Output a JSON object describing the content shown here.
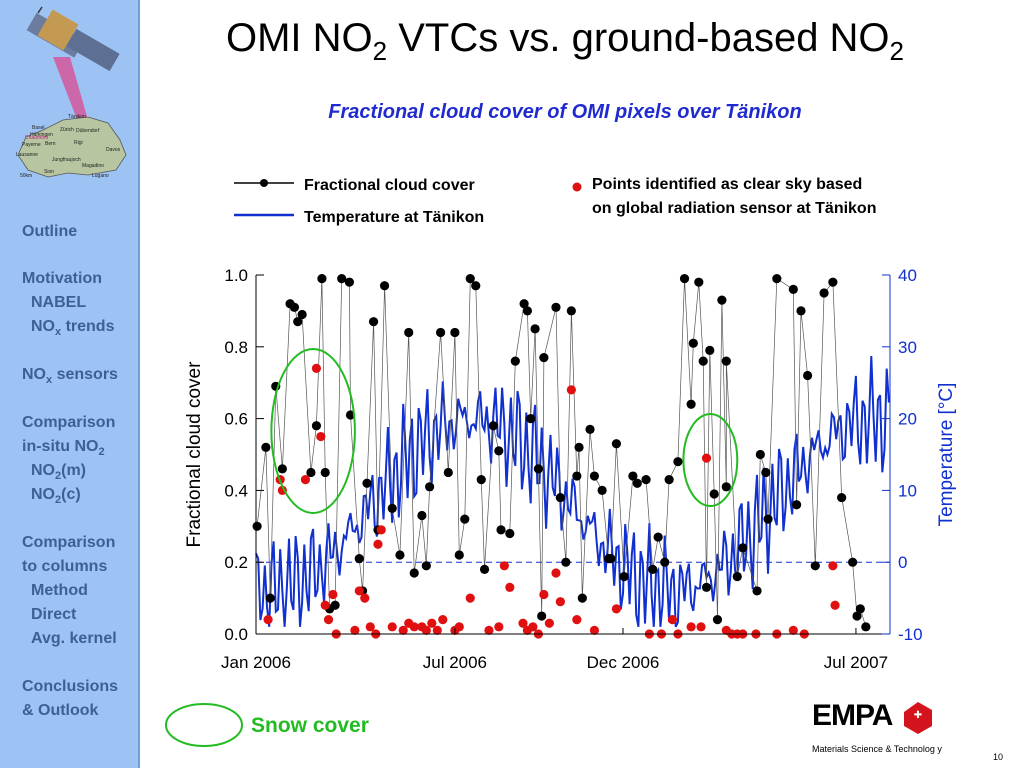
{
  "slide": {
    "title_main": "OMI NO",
    "title_sub1": "2",
    "title_mid": " VTCs vs. ground-based NO",
    "title_sub2": "2",
    "subtitle": "Fractional cloud cover of OMI pixels over Tänikon",
    "page_number": "10",
    "footer_company": "Materials Science & Technolog y",
    "logo_text": "EMPA"
  },
  "sidebar": {
    "map_labels": [
      "Tänikon",
      "Basel",
      "Härkingen",
      "Zürich",
      "Dübendorf",
      "Payerne",
      "Bern",
      "Rigi",
      "Lausanne",
      "Jungfraujoch",
      "Sion",
      "Davos",
      "Magadino",
      "Lugano",
      "Chaumont",
      "50km"
    ],
    "nav": [
      {
        "label": "Outline",
        "level": 0,
        "active": false
      },
      {
        "label": "Motivation",
        "level": 0,
        "active": false
      },
      {
        "label": "NABEL",
        "level": 1,
        "active": false
      },
      {
        "label": "NO",
        "sub": "x",
        "label_after": " trends",
        "level": 1,
        "active": false
      },
      {
        "label": "NO",
        "sub": "x",
        "label_after": " sensors",
        "level": 0,
        "active": false
      },
      {
        "label": "Comparison",
        "level": 0,
        "active": true
      },
      {
        "label": "in-situ NO",
        "sub": "2",
        "level": 0,
        "active": true
      },
      {
        "label": "NO",
        "sub": "2",
        "label_after": "(m)",
        "level": 1,
        "active": false
      },
      {
        "label": "NO",
        "sub": "2",
        "label_after": "(c)",
        "level": 1,
        "active": false
      },
      {
        "label": "Comparison",
        "level": 0,
        "active": false
      },
      {
        "label": "to columns",
        "level": 0,
        "active": false
      },
      {
        "label": "Method",
        "level": 1,
        "active": false
      },
      {
        "label": "Direct",
        "level": 1,
        "active": false
      },
      {
        "label": "Avg. kernel",
        "level": 1,
        "active": false
      },
      {
        "label": "Conclusions",
        "level": 0,
        "active": false
      },
      {
        "label": "& Outlook",
        "level": 0,
        "active": false
      }
    ]
  },
  "legend": {
    "cloud": "Fractional cloud cover",
    "temperature": "Temperature at Tänikon",
    "clear_line1": "Points identified as clear sky based",
    "clear_line2": "on global radiation sensor at Tänikon",
    "snow": "Snow cover"
  },
  "colors": {
    "cloud": "#000000",
    "temperature": "#1030d0",
    "clear_sky": "#e01010",
    "snow": "#22bb22",
    "title_blue": "#1f2bd0",
    "sidebar": "#9dc3f4"
  },
  "chart_data": {
    "type": "scatter",
    "xlabel": "",
    "ylabel": "Fractional cloud cover",
    "y2label": "Temperature [°C]",
    "xticks": [
      "Jan 2006",
      "Jul 2006",
      "Dec 2006",
      "Jul 2007"
    ],
    "xlim": [
      "2006-01-01",
      "2007-08-01"
    ],
    "ylim": [
      0.0,
      1.0
    ],
    "y2lim": [
      -10,
      40
    ],
    "yticks": [
      "0.0",
      "0.2",
      "0.4",
      "0.6",
      "0.8",
      "1.0"
    ],
    "y2ticks": [
      "-10",
      "0",
      "10",
      "20",
      "30",
      "40"
    ],
    "grid": false,
    "reference_line_y2": 0,
    "snow_periods": [
      [
        "2006-01-15",
        "2006-04-01"
      ],
      [
        "2007-01-25",
        "2007-03-15"
      ]
    ],
    "series": [
      {
        "name": "Fractional cloud cover",
        "points": [
          [
            "2006-01-02",
            0.3
          ],
          [
            "2006-01-10",
            0.52
          ],
          [
            "2006-01-14",
            0.1
          ],
          [
            "2006-01-19",
            0.69
          ],
          [
            "2006-01-25",
            0.46
          ],
          [
            "2006-02-01",
            0.92
          ],
          [
            "2006-02-05",
            0.91
          ],
          [
            "2006-02-08",
            0.87
          ],
          [
            "2006-02-12",
            0.89
          ],
          [
            "2006-02-20",
            0.45
          ],
          [
            "2006-02-25",
            0.58
          ],
          [
            "2006-03-02",
            0.99
          ],
          [
            "2006-03-05",
            0.45
          ],
          [
            "2006-03-09",
            0.07
          ],
          [
            "2006-03-14",
            0.08
          ],
          [
            "2006-03-20",
            0.99
          ],
          [
            "2006-03-27",
            0.98
          ],
          [
            "2006-03-28",
            0.61
          ],
          [
            "2006-04-05",
            0.21
          ],
          [
            "2006-04-08",
            0.12
          ],
          [
            "2006-04-12",
            0.42
          ],
          [
            "2006-04-18",
            0.87
          ],
          [
            "2006-04-22",
            0.29
          ],
          [
            "2006-04-28",
            0.97
          ],
          [
            "2006-05-05",
            0.35
          ],
          [
            "2006-05-12",
            0.22
          ],
          [
            "2006-05-20",
            0.84
          ],
          [
            "2006-05-25",
            0.17
          ],
          [
            "2006-06-01",
            0.33
          ],
          [
            "2006-06-05",
            0.19
          ],
          [
            "2006-06-08",
            0.41
          ],
          [
            "2006-06-18",
            0.84
          ],
          [
            "2006-06-25",
            0.45
          ],
          [
            "2006-07-01",
            0.84
          ],
          [
            "2006-07-05",
            0.22
          ],
          [
            "2006-07-10",
            0.32
          ],
          [
            "2006-07-15",
            0.99
          ],
          [
            "2006-07-20",
            0.97
          ],
          [
            "2006-07-25",
            0.43
          ],
          [
            "2006-07-28",
            0.18
          ],
          [
            "2006-08-05",
            0.58
          ],
          [
            "2006-08-10",
            0.51
          ],
          [
            "2006-08-12",
            0.29
          ],
          [
            "2006-08-20",
            0.28
          ],
          [
            "2006-08-25",
            0.76
          ],
          [
            "2006-09-02",
            0.92
          ],
          [
            "2006-09-05",
            0.9
          ],
          [
            "2006-09-08",
            0.6
          ],
          [
            "2006-09-12",
            0.85
          ],
          [
            "2006-09-15",
            0.46
          ],
          [
            "2006-09-18",
            0.05
          ],
          [
            "2006-09-20",
            0.77
          ],
          [
            "2006-10-01",
            0.91
          ],
          [
            "2006-10-05",
            0.38
          ],
          [
            "2006-10-10",
            0.2
          ],
          [
            "2006-10-15",
            0.9
          ],
          [
            "2006-10-20",
            0.44
          ],
          [
            "2006-10-22",
            0.52
          ],
          [
            "2006-10-25",
            0.1
          ],
          [
            "2006-11-01",
            0.57
          ],
          [
            "2006-11-05",
            0.44
          ],
          [
            "2006-11-12",
            0.4
          ],
          [
            "2006-11-18",
            0.21
          ],
          [
            "2006-11-20",
            0.21
          ],
          [
            "2006-11-25",
            0.53
          ],
          [
            "2006-12-02",
            0.16
          ],
          [
            "2006-12-10",
            0.44
          ],
          [
            "2006-12-14",
            0.42
          ],
          [
            "2006-12-22",
            0.43
          ],
          [
            "2006-12-28",
            0.18
          ],
          [
            "2007-01-02",
            0.27
          ],
          [
            "2007-01-08",
            0.2
          ],
          [
            "2007-01-12",
            0.43
          ],
          [
            "2007-01-20",
            0.48
          ],
          [
            "2007-01-26",
            0.99
          ],
          [
            "2007-02-01",
            0.64
          ],
          [
            "2007-02-03",
            0.81
          ],
          [
            "2007-02-08",
            0.98
          ],
          [
            "2007-02-12",
            0.76
          ],
          [
            "2007-02-15",
            0.13
          ],
          [
            "2007-02-18",
            0.79
          ],
          [
            "2007-02-22",
            0.39
          ],
          [
            "2007-02-25",
            0.04
          ],
          [
            "2007-03-01",
            0.93
          ],
          [
            "2007-03-05",
            0.41
          ],
          [
            "2007-03-05",
            0.76
          ],
          [
            "2007-03-15",
            0.16
          ],
          [
            "2007-03-20",
            0.24
          ],
          [
            "2007-04-02",
            0.12
          ],
          [
            "2007-04-05",
            0.5
          ],
          [
            "2007-04-10",
            0.45
          ],
          [
            "2007-04-12",
            0.32
          ],
          [
            "2007-04-20",
            0.99
          ],
          [
            "2007-05-05",
            0.96
          ],
          [
            "2007-05-08",
            0.36
          ],
          [
            "2007-05-12",
            0.9
          ],
          [
            "2007-05-18",
            0.72
          ],
          [
            "2007-05-25",
            0.19
          ],
          [
            "2007-06-02",
            0.95
          ],
          [
            "2007-06-10",
            0.98
          ],
          [
            "2007-06-18",
            0.38
          ],
          [
            "2007-06-28",
            0.2
          ],
          [
            "2007-07-02",
            0.05
          ],
          [
            "2007-07-05",
            0.07
          ],
          [
            "2007-07-10",
            0.02
          ]
        ]
      },
      {
        "name": "Points identified as clear sky based on global radiation sensor at Tänikon",
        "points": [
          [
            "2006-01-12",
            0.04
          ],
          [
            "2006-01-23",
            0.43
          ],
          [
            "2006-01-25",
            0.4
          ],
          [
            "2006-02-15",
            0.43
          ],
          [
            "2006-02-25",
            0.74
          ],
          [
            "2006-03-01",
            0.55
          ],
          [
            "2006-03-05",
            0.08
          ],
          [
            "2006-03-08",
            0.04
          ],
          [
            "2006-03-12",
            0.11
          ],
          [
            "2006-03-15",
            0.0
          ],
          [
            "2006-04-01",
            0.01
          ],
          [
            "2006-04-05",
            0.12
          ],
          [
            "2006-04-10",
            0.1
          ],
          [
            "2006-04-15",
            0.02
          ],
          [
            "2006-04-20",
            0.0
          ],
          [
            "2006-04-22",
            0.25
          ],
          [
            "2006-04-25",
            0.29
          ],
          [
            "2006-05-05",
            0.02
          ],
          [
            "2006-05-15",
            0.01
          ],
          [
            "2006-05-20",
            0.03
          ],
          [
            "2006-05-25",
            0.02
          ],
          [
            "2006-06-01",
            0.02
          ],
          [
            "2006-06-05",
            0.01
          ],
          [
            "2006-06-10",
            0.03
          ],
          [
            "2006-06-15",
            0.01
          ],
          [
            "2006-06-20",
            0.04
          ],
          [
            "2006-07-01",
            0.01
          ],
          [
            "2006-07-05",
            0.02
          ],
          [
            "2006-07-15",
            0.1
          ],
          [
            "2006-08-01",
            0.01
          ],
          [
            "2006-08-10",
            0.02
          ],
          [
            "2006-08-15",
            0.19
          ],
          [
            "2006-08-20",
            0.13
          ],
          [
            "2006-09-01",
            0.03
          ],
          [
            "2006-09-05",
            0.01
          ],
          [
            "2006-09-10",
            0.02
          ],
          [
            "2006-09-15",
            0.0
          ],
          [
            "2006-09-20",
            0.11
          ],
          [
            "2006-09-25",
            0.03
          ],
          [
            "2006-10-01",
            0.17
          ],
          [
            "2006-10-05",
            0.09
          ],
          [
            "2006-10-15",
            0.68
          ],
          [
            "2006-10-20",
            0.04
          ],
          [
            "2006-11-05",
            0.01
          ],
          [
            "2006-11-25",
            0.07
          ],
          [
            "2006-12-25",
            0.0
          ],
          [
            "2007-01-05",
            0.0
          ],
          [
            "2007-01-15",
            0.04
          ],
          [
            "2007-01-20",
            0.0
          ],
          [
            "2007-02-01",
            0.02
          ],
          [
            "2007-02-10",
            0.02
          ],
          [
            "2007-02-15",
            0.49
          ],
          [
            "2007-03-05",
            0.01
          ],
          [
            "2007-03-10",
            0.0
          ],
          [
            "2007-03-15",
            0.0
          ],
          [
            "2007-03-20",
            0.0
          ],
          [
            "2007-04-01",
            0.0
          ],
          [
            "2007-04-20",
            0.0
          ],
          [
            "2007-05-05",
            0.01
          ],
          [
            "2007-05-15",
            0.0
          ],
          [
            "2007-06-10",
            0.19
          ],
          [
            "2007-06-12",
            0.08
          ]
        ]
      }
    ]
  }
}
